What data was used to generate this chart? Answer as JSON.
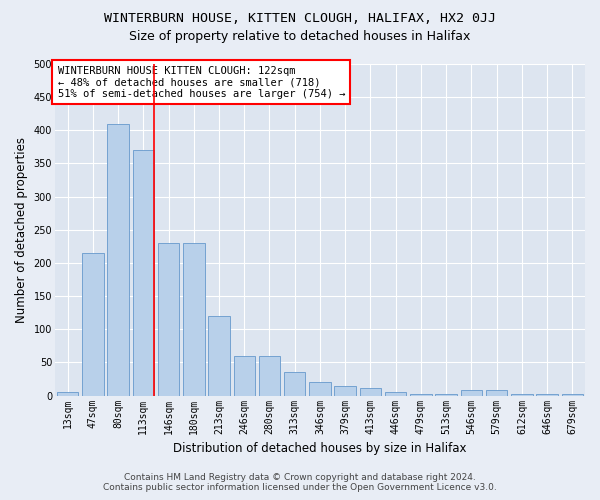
{
  "title": "WINTERBURN HOUSE, KITTEN CLOUGH, HALIFAX, HX2 0JJ",
  "subtitle": "Size of property relative to detached houses in Halifax",
  "xlabel": "Distribution of detached houses by size in Halifax",
  "ylabel": "Number of detached properties",
  "categories": [
    "13sqm",
    "47sqm",
    "80sqm",
    "113sqm",
    "146sqm",
    "180sqm",
    "213sqm",
    "246sqm",
    "280sqm",
    "313sqm",
    "346sqm",
    "379sqm",
    "413sqm",
    "446sqm",
    "479sqm",
    "513sqm",
    "546sqm",
    "579sqm",
    "612sqm",
    "646sqm",
    "679sqm"
  ],
  "values": [
    5,
    215,
    410,
    370,
    230,
    230,
    120,
    60,
    60,
    35,
    20,
    15,
    12,
    5,
    3,
    3,
    8,
    8,
    2,
    2,
    2
  ],
  "bar_color": "#b8d0ea",
  "bar_edge_color": "#6699cc",
  "background_color": "#e8edf5",
  "plot_bg_color": "#dde5f0",
  "red_line_x": 3.42,
  "annotation_title": "WINTERBURN HOUSE KITTEN CLOUGH: 122sqm",
  "annotation_line1": "← 48% of detached houses are smaller (718)",
  "annotation_line2": "51% of semi-detached houses are larger (754) →",
  "footer1": "Contains HM Land Registry data © Crown copyright and database right 2024.",
  "footer2": "Contains public sector information licensed under the Open Government Licence v3.0.",
  "ylim": [
    0,
    500
  ],
  "yticks": [
    0,
    50,
    100,
    150,
    200,
    250,
    300,
    350,
    400,
    450,
    500
  ],
  "title_fontsize": 9.5,
  "subtitle_fontsize": 9,
  "axis_label_fontsize": 8.5,
  "tick_fontsize": 7,
  "annotation_fontsize": 7.5,
  "footer_fontsize": 6.5
}
